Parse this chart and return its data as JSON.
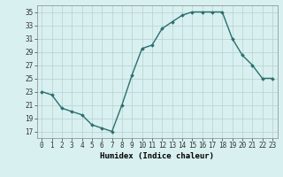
{
  "x": [
    0,
    1,
    2,
    3,
    4,
    5,
    6,
    7,
    8,
    9,
    10,
    11,
    12,
    13,
    14,
    15,
    16,
    17,
    18,
    19,
    20,
    21,
    22,
    23
  ],
  "y": [
    23,
    22.5,
    20.5,
    20,
    19.5,
    18,
    17.5,
    17,
    21,
    25.5,
    29.5,
    30,
    32.5,
    33.5,
    34.5,
    35,
    35,
    35,
    35,
    31,
    28.5,
    27,
    25,
    25
  ],
  "line_color": "#2d6e6e",
  "marker": "D",
  "marker_size": 1.8,
  "bg_color": "#d8f0f0",
  "grid_color": "#b8d0d0",
  "xlabel": "Humidex (Indice chaleur)",
  "xlim": [
    -0.5,
    23.5
  ],
  "ylim": [
    16,
    36
  ],
  "yticks": [
    17,
    19,
    21,
    23,
    25,
    27,
    29,
    31,
    33,
    35
  ],
  "linewidth": 1.0,
  "tick_fontsize": 5.5,
  "xlabel_fontsize": 6.5
}
